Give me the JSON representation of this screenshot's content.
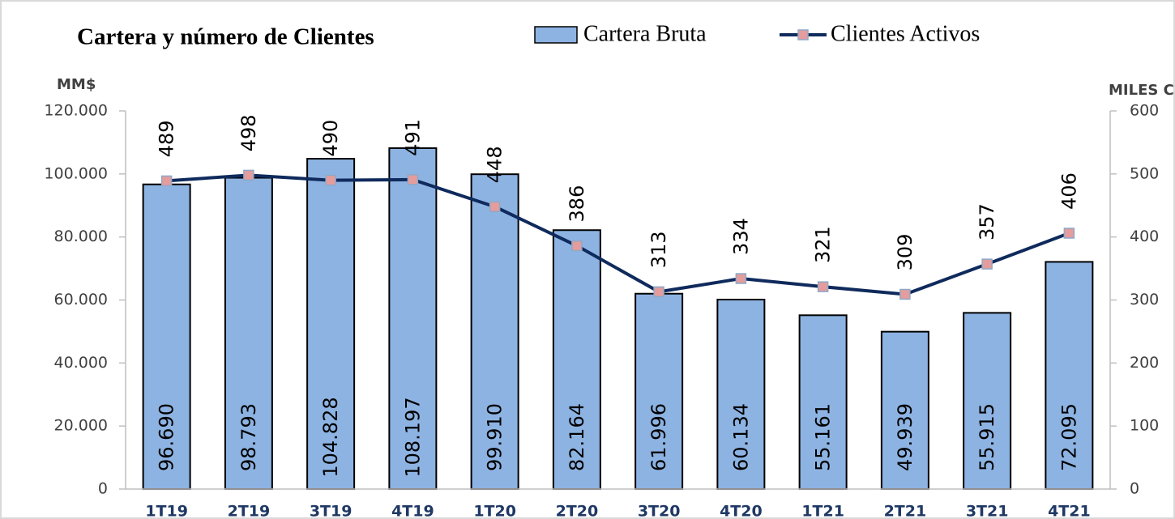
{
  "chart_data": {
    "type": "bar_line",
    "title": "Cartera y número de Clientes",
    "y_label": "MM$",
    "y2_label": "MILES C",
    "categories": [
      "1T19",
      "2T19",
      "3T19",
      "4T19",
      "1T20",
      "2T20",
      "3T20",
      "4T20",
      "1T21",
      "2T21",
      "3T21",
      "4T21"
    ],
    "series": [
      {
        "name": "Cartera Bruta",
        "color": "#8db3e2",
        "values": [
          96690,
          98793,
          104828,
          108197,
          99910,
          82164,
          61996,
          60134,
          55161,
          49939,
          55915,
          72095
        ],
        "value_labels": [
          "96.690",
          "98.793",
          "104.828",
          "108.197",
          "99.910",
          "82.164",
          "61.996",
          "60.134",
          "55.161",
          "49.939",
          "55.915",
          "72.095"
        ]
      },
      {
        "name": "Clientes Activos",
        "color": "#0f2a5c",
        "marker_color": "#e59c9c",
        "axis": "y2",
        "values": [
          489,
          498,
          490,
          491,
          448,
          386,
          313,
          334,
          321,
          309,
          357,
          406
        ]
      }
    ],
    "ylim": [
      0,
      120000
    ],
    "yticks": [
      0,
      {
        "value": 20000,
        "label": "20.000"
      },
      {
        "value": 40000,
        "label": "40.000"
      },
      {
        "value": 60000,
        "label": "60.000"
      },
      {
        "value": 80000,
        "label": "80.000"
      },
      {
        "value": 100000,
        "label": "100.000"
      },
      {
        "value": 120000,
        "label": "120.000"
      }
    ],
    "y2lim": [
      0,
      600
    ],
    "y2ticks": [
      0,
      100,
      200,
      300,
      400,
      500,
      600
    ]
  }
}
